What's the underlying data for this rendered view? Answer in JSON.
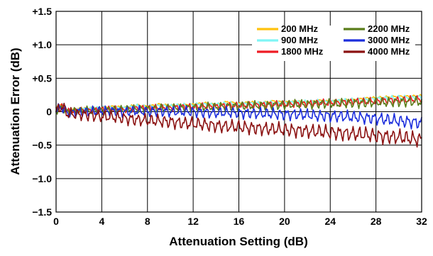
{
  "chart_data": {
    "type": "line",
    "title": "",
    "xlabel": "Attenuation Setting (dB)",
    "ylabel": "Attenuation Error (dB)",
    "xlim": [
      0,
      32
    ],
    "ylim": [
      -1.5,
      1.5
    ],
    "x_ticks": [
      0,
      4,
      8,
      12,
      16,
      20,
      24,
      28,
      32
    ],
    "x_tick_labels": [
      "0",
      "4",
      "8",
      "12",
      "16",
      "20",
      "24",
      "28",
      "32"
    ],
    "y_ticks": [
      1.5,
      1.0,
      0.5,
      0,
      -0.5,
      -1.0,
      -1.5
    ],
    "y_tick_labels": [
      "+1.5",
      "+1.0",
      "+0.5",
      "0",
      "−0.5",
      "−1.0",
      "−1.5"
    ],
    "grid": true,
    "legend_position": "top-right",
    "series": [
      {
        "name": "200 MHz",
        "color": "#ffc20e",
        "x": [
          0,
          0.5,
          1,
          2,
          3,
          4,
          5,
          6,
          7,
          8,
          9,
          10,
          11,
          12,
          13,
          14,
          15,
          16,
          17,
          18,
          19,
          20,
          21,
          22,
          23,
          24,
          25,
          26,
          27,
          28,
          29,
          30,
          31,
          32
        ],
        "y": [
          0.05,
          0.13,
          0.02,
          0.04,
          0.05,
          0.06,
          0.08,
          0.06,
          0.1,
          0.08,
          0.11,
          0.09,
          0.1,
          0.11,
          0.13,
          0.1,
          0.15,
          0.12,
          0.14,
          0.13,
          0.16,
          0.14,
          0.15,
          0.14,
          0.17,
          0.15,
          0.17,
          0.18,
          0.2,
          0.21,
          0.22,
          0.23,
          0.23,
          0.24
        ]
      },
      {
        "name": "900 MHz",
        "color": "#7ff5f5",
        "x": [
          0,
          0.5,
          1,
          2,
          3,
          4,
          5,
          6,
          7,
          8,
          9,
          10,
          11,
          12,
          13,
          14,
          15,
          16,
          17,
          18,
          19,
          20,
          21,
          22,
          23,
          24,
          25,
          26,
          27,
          28,
          29,
          30,
          31,
          32
        ],
        "y": [
          0.04,
          0.1,
          0.02,
          0.03,
          0.04,
          0.05,
          0.06,
          0.05,
          0.08,
          0.07,
          0.09,
          0.08,
          0.09,
          0.1,
          0.11,
          0.1,
          0.12,
          0.11,
          0.12,
          0.12,
          0.13,
          0.13,
          0.14,
          0.14,
          0.15,
          0.15,
          0.16,
          0.17,
          0.18,
          0.19,
          0.2,
          0.21,
          0.21,
          0.22
        ]
      },
      {
        "name": "1800 MHz",
        "color": "#ee1c24",
        "x": [
          0,
          0.5,
          1,
          2,
          3,
          4,
          5,
          6,
          7,
          8,
          9,
          10,
          11,
          12,
          13,
          14,
          15,
          16,
          17,
          18,
          19,
          20,
          21,
          22,
          23,
          24,
          25,
          26,
          27,
          28,
          29,
          30,
          31,
          32
        ],
        "y": [
          0.03,
          0.08,
          0.0,
          0.02,
          0.02,
          0.03,
          0.04,
          0.03,
          0.05,
          0.05,
          0.06,
          0.06,
          0.07,
          0.07,
          0.08,
          0.08,
          0.09,
          0.09,
          0.1,
          0.1,
          0.11,
          0.11,
          0.12,
          0.12,
          0.13,
          0.13,
          0.14,
          0.15,
          0.15,
          0.16,
          0.17,
          0.17,
          0.18,
          0.19
        ]
      },
      {
        "name": "2200 MHz",
        "color": "#5a7d1a",
        "x": [
          0,
          0.5,
          1,
          2,
          3,
          4,
          5,
          6,
          7,
          8,
          9,
          10,
          11,
          12,
          13,
          14,
          15,
          16,
          17,
          18,
          19,
          20,
          21,
          22,
          23,
          24,
          25,
          26,
          27,
          28,
          29,
          30,
          31,
          32
        ],
        "y": [
          0.02,
          0.06,
          -0.01,
          0.01,
          0.02,
          0.02,
          0.03,
          0.03,
          0.04,
          0.04,
          0.05,
          0.05,
          0.06,
          0.06,
          0.07,
          0.07,
          0.08,
          0.08,
          0.09,
          0.09,
          0.1,
          0.1,
          0.11,
          0.11,
          0.12,
          0.12,
          0.12,
          0.13,
          0.13,
          0.14,
          0.14,
          0.15,
          0.15,
          0.15
        ]
      },
      {
        "name": "3000 MHz",
        "color": "#1c2edc",
        "x": [
          0,
          0.5,
          1,
          2,
          3,
          4,
          5,
          6,
          7,
          8,
          9,
          10,
          11,
          12,
          13,
          14,
          15,
          16,
          17,
          18,
          19,
          20,
          21,
          22,
          23,
          24,
          25,
          26,
          27,
          28,
          29,
          30,
          31,
          32
        ],
        "y": [
          0.03,
          0.07,
          -0.02,
          0.0,
          0.0,
          0.01,
          0.01,
          0.0,
          0.01,
          0.0,
          0.01,
          0.0,
          0.0,
          0.0,
          -0.01,
          -0.02,
          -0.01,
          -0.02,
          -0.02,
          -0.03,
          -0.03,
          -0.04,
          -0.04,
          -0.05,
          -0.06,
          -0.06,
          -0.07,
          -0.08,
          -0.09,
          -0.1,
          -0.12,
          -0.14,
          -0.15,
          -0.17
        ]
      },
      {
        "name": "4000 MHz",
        "color": "#8b1111",
        "x": [
          0,
          0.5,
          1,
          2,
          3,
          4,
          5,
          6,
          7,
          8,
          9,
          10,
          11,
          12,
          13,
          14,
          15,
          16,
          17,
          18,
          19,
          20,
          21,
          22,
          23,
          24,
          25,
          26,
          27,
          28,
          29,
          30,
          31,
          32
        ],
        "y": [
          0.0,
          0.08,
          -0.03,
          -0.04,
          -0.05,
          -0.07,
          -0.08,
          -0.1,
          -0.12,
          -0.13,
          -0.14,
          -0.15,
          -0.17,
          -0.18,
          -0.19,
          -0.21,
          -0.22,
          -0.23,
          -0.24,
          -0.25,
          -0.26,
          -0.27,
          -0.28,
          -0.29,
          -0.3,
          -0.31,
          -0.32,
          -0.33,
          -0.34,
          -0.36,
          -0.37,
          -0.38,
          -0.4,
          -0.42
        ]
      }
    ]
  }
}
